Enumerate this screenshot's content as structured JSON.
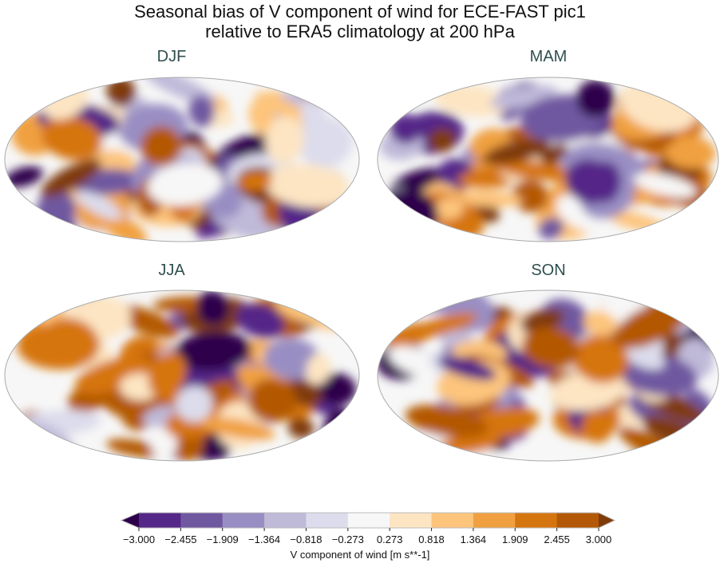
{
  "title": {
    "line1": "Seasonal bias of V component of wind for ECE-FAST pic1",
    "line2": "relative to ERA5 climatology at 200 hPa"
  },
  "panels": [
    {
      "label": "DJF"
    },
    {
      "label": "MAM"
    },
    {
      "label": "JJA"
    },
    {
      "label": "SON"
    }
  ],
  "colorbar": {
    "label": "V component of wind [m s**-1]",
    "ticks": [
      "−3.000",
      "−2.455",
      "−1.909",
      "−1.364",
      "−0.818",
      "−0.273",
      "0.273",
      "0.818",
      "1.364",
      "1.909",
      "2.455",
      "3.000"
    ],
    "colors": [
      "#542788",
      "#7058a0",
      "#998ec3",
      "#c0bad9",
      "#dcdcec",
      "#f7f7f7",
      "#fde5c3",
      "#fdc47c",
      "#f0a040",
      "#d5750f",
      "#b35806"
    ],
    "extend_low": "#2d004b",
    "extend_high": "#7f3b08"
  }
}
